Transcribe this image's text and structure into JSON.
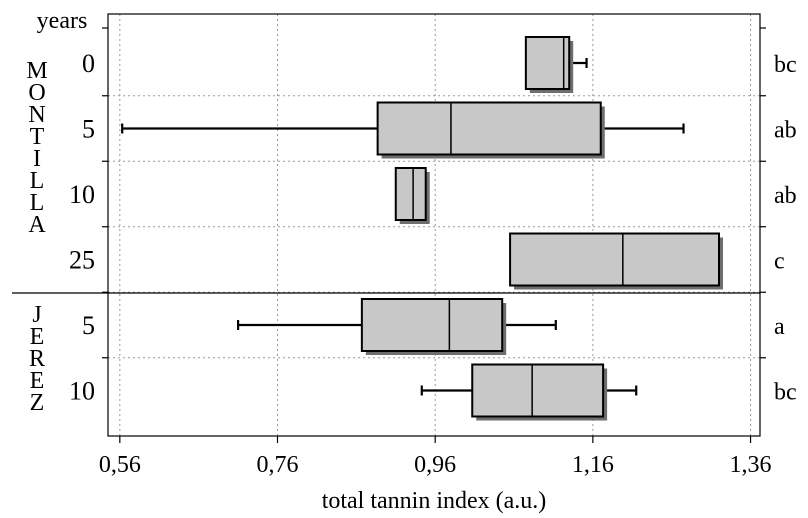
{
  "chart_data": {
    "type": "box",
    "title": "",
    "xlabel": "total tannin index (a.u.)",
    "ylabel": "years",
    "xlim": [
      0.545,
      1.372
    ],
    "xticks": [
      "0,56",
      "0,76",
      "0,96",
      "1,16",
      "1,36"
    ],
    "xtick_values": [
      0.56,
      0.76,
      0.96,
      1.16,
      1.36
    ],
    "grid": true,
    "groups": [
      {
        "name": "MONTILLA",
        "letters": [
          "M",
          "O",
          "N",
          "T",
          "I",
          "L",
          "L",
          "A"
        ],
        "rows": [
          {
            "age": "0",
            "min": 1.075,
            "q1": 1.075,
            "median": 1.123,
            "q3": 1.13,
            "max": 1.152,
            "letter": "bc"
          },
          {
            "age": "5",
            "min": 0.563,
            "q1": 0.887,
            "median": 0.98,
            "q3": 1.17,
            "max": 1.275,
            "letter": "ab"
          },
          {
            "age": "10",
            "min": 0.91,
            "q1": 0.91,
            "median": 0.932,
            "q3": 0.948,
            "max": 0.948,
            "letter": "ab"
          },
          {
            "age": "25",
            "min": 1.055,
            "q1": 1.055,
            "median": 1.198,
            "q3": 1.32,
            "max": 1.32,
            "letter": "c"
          }
        ]
      },
      {
        "name": "JEREZ",
        "letters": [
          "J",
          "E",
          "R",
          "E",
          "Z"
        ],
        "rows": [
          {
            "age": "5",
            "min": 0.71,
            "q1": 0.867,
            "median": 0.978,
            "q3": 1.045,
            "max": 1.113,
            "letter": "a"
          },
          {
            "age": "10",
            "min": 0.943,
            "q1": 1.007,
            "median": 1.083,
            "q3": 1.173,
            "max": 1.215,
            "letter": "bc"
          }
        ]
      }
    ]
  }
}
